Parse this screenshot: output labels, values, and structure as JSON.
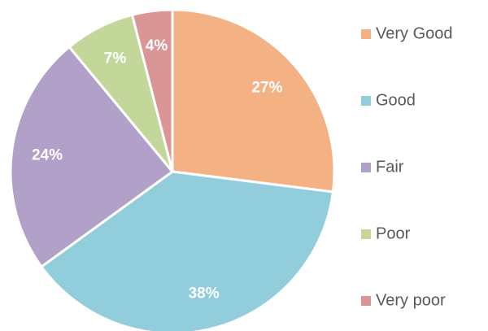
{
  "chart_data": {
    "type": "pie",
    "categories": [
      "Very Good",
      "Good",
      "Fair",
      "Poor",
      "Very poor"
    ],
    "values": [
      27,
      38,
      24,
      7,
      4
    ],
    "value_labels": [
      "27%",
      "38%",
      "24%",
      "7%",
      "4%"
    ],
    "colors": [
      "#F4B183",
      "#92CDDC",
      "#B1A0C7",
      "#C4D79B",
      "#DA9694"
    ],
    "legend": "right"
  }
}
